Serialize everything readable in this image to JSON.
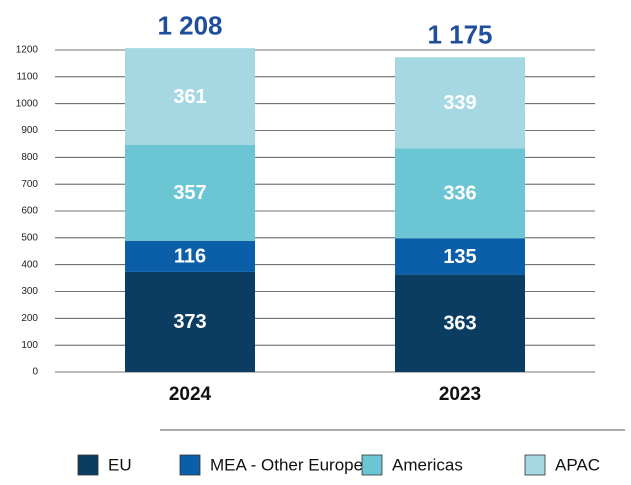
{
  "chart_data": {
    "type": "stacked_bar",
    "categories": [
      "2024",
      "2023"
    ],
    "series": [
      {
        "name": "EU",
        "color": "#0b3d63",
        "values": [
          373,
          363
        ]
      },
      {
        "name": "MEA - Other Europe",
        "color": "#0a5fa8",
        "values": [
          116,
          135
        ]
      },
      {
        "name": "Americas",
        "color": "#6cc5d3",
        "values": [
          357,
          336
        ]
      },
      {
        "name": "APAC",
        "color": "#a5d8e3",
        "values": [
          361,
          339
        ]
      }
    ],
    "totals": [
      1208,
      1175
    ],
    "total_labels": [
      "1 208",
      "1 175"
    ],
    "total_color": "#1f4e9c",
    "ylim": [
      0,
      1200
    ],
    "yticks": [
      0,
      100,
      200,
      300,
      400,
      500,
      600,
      700,
      800,
      900,
      1000,
      1100,
      1200
    ],
    "grid": true,
    "legend": "bottom"
  }
}
